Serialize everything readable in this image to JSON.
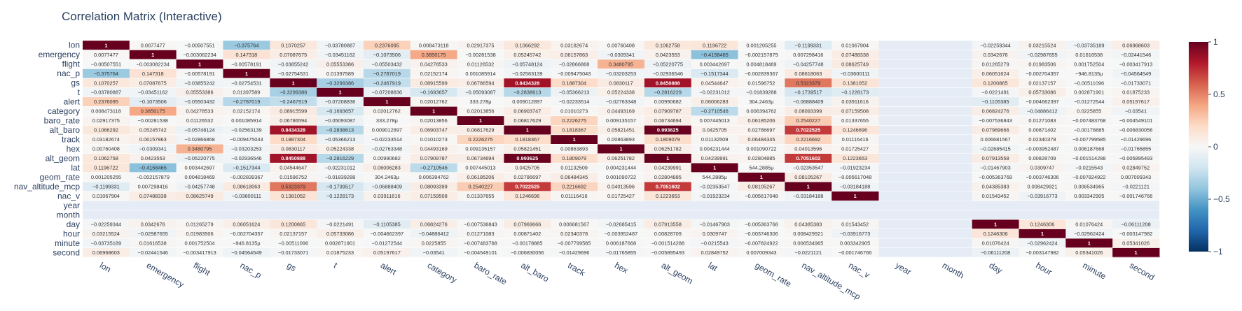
{
  "chart_data": {
    "type": "heatmap",
    "title": "Correlation Matrix (Interactive)",
    "labels": [
      "lon",
      "emergency",
      "flight",
      "nac_p",
      "gs",
      "t",
      "alert",
      "category",
      "baro_rate",
      "alt_baro",
      "track",
      "hex",
      "alt_geom",
      "lat",
      "geom_rate",
      "nav_altitude_mcp",
      "nac_v",
      "year",
      "month",
      "day",
      "hour",
      "minute",
      "second"
    ],
    "zmin": -1,
    "zmax": 1,
    "colorscale": "RdBu",
    "colorbar_ticks": [
      "1",
      "0.5",
      "0",
      "−0.5",
      "−1"
    ],
    "colorbar_tick_values": [
      1,
      0.5,
      0,
      -0.5,
      -1
    ],
    "missing_color": "#e5ecf6",
    "cells": [
      [
        "1",
        "0.0077477",
        "−0.00507551",
        "−0.375764",
        "0.1070257",
        "−0.03780887",
        "0.2376095",
        "0.008473118",
        "0.02917375",
        "0.1066292",
        "0.03182674",
        "0.00760408",
        "0.1062758",
        "0.1196722",
        "0.001205255",
        "−0.1199331",
        "0.01067904",
        "",
        "",
        "−0.02259344",
        "0.03215524",
        "−0.03735189",
        "0.06968603"
      ],
      [
        "0.0077477",
        "1",
        "−0.003082234",
        "0.147318",
        "0.07087675",
        "−0.03451162",
        "−0.1073506",
        "0.3850175",
        "−0.00281538",
        "0.05245742",
        "0.06157863",
        "−0.0309341",
        "0.0423553",
        "−0.4158465",
        "−0.002157879",
        "0.007298416",
        "0.07488338",
        "",
        "",
        "0.0342676",
        "−0.02987655",
        "0.01616538",
        "−0.02441546"
      ],
      [
        "−0.00507551",
        "−0.003082234",
        "1",
        "−0.00578191",
        "−0.03855242",
        "0.05553386",
        "−0.05503432",
        "0.04278533",
        "0.01126532",
        "−0.05748124",
        "−0.02866868",
        "0.3480795",
        "−0.05220775",
        "0.003442697",
        "0.004818469",
        "−0.04257748",
        "0.08625749",
        "",
        "",
        "0.01265279",
        "0.01983506",
        "0.001752504",
        "−0.003417913"
      ],
      [
        "−0.375764",
        "0.147318",
        "−0.00578191",
        "1",
        "−0.02754531",
        "0.01397589",
        "−0.2787019",
        "0.02152174",
        "0.001085914",
        "−0.02563139",
        "−0.009475043",
        "−0.03203253",
        "−0.02936546",
        "−0.1517344",
        "−0.002839367",
        "0.08618063",
        "−0.03600111",
        "",
        "",
        "0.06051624",
        "−0.002704357",
        "−946.8135μ",
        "−0.04564549"
      ],
      [
        "0.1070257",
        "0.07087675",
        "−0.03855242",
        "−0.02754531",
        "1",
        "−0.3299386",
        "−0.2467919",
        "0.08915599",
        "0.06786594",
        "0.8434328",
        "0.1887304",
        "0.0830117",
        "0.8450888",
        "0.04544647",
        "0.01596752",
        "0.5323379",
        "0.1381052",
        "",
        "",
        "0.1200865",
        "0.02137157",
        "−0.00511096",
        "−0.01733071"
      ],
      [
        "−0.03780887",
        "−0.03451162",
        "0.05553386",
        "0.01397589",
        "−0.3299386",
        "1",
        "−0.07208836",
        "−0.1693657",
        "−0.05093087",
        "−0.2838613",
        "−0.05366213",
        "0.05224338",
        "−0.2816229",
        "−0.02231012",
        "−0.01839288",
        "−0.1739517",
        "−0.1228173",
        "",
        "",
        "−0.0221491",
        "0.05733086",
        "0.002871901",
        "0.01875233"
      ],
      [
        "0.2376095",
        "−0.1073506",
        "−0.05503432",
        "−0.2787019",
        "−0.2467919",
        "−0.07208836",
        "1",
        "0.02012762",
        "333.278μ",
        "0.009012897",
        "−0.02233514",
        "−0.02763348",
        "0.00990682",
        "0.06006283",
        "304.2463μ",
        "−0.06888409",
        "0.03911616",
        "",
        "",
        "−0.1105385",
        "−0.004662397",
        "−0.01272544",
        "0.05197617"
      ],
      [
        "0.008473118",
        "0.3850175",
        "0.04278533",
        "0.02152174",
        "0.08915599",
        "−0.1693657",
        "0.02012762",
        "1",
        "0.02013856",
        "0.06903747",
        "0.01010273",
        "0.04493169",
        "0.07909787",
        "−0.2710546",
        "0.006394762",
        "0.08093399",
        "0.07159508",
        "",
        "",
        "0.06824276",
        "−0.04886412",
        "0.0225855",
        "−0.03541"
      ],
      [
        "0.02917375",
        "−0.00281538",
        "0.01126532",
        "0.001085914",
        "0.06786594",
        "−0.05093087",
        "333.278μ",
        "0.02013856",
        "1",
        "0.06817629",
        "0.2226275",
        "0.009135157",
        "0.06734694",
        "0.007445013",
        "0.06185206",
        "0.2540227",
        "0.01337655",
        "",
        "",
        "−0.007536843",
        "0.01271083",
        "−0.007483768",
        "−0.004549101"
      ],
      [
        "0.1066292",
        "0.05245742",
        "−0.05748124",
        "−0.02563139",
        "0.8434328",
        "−0.2838613",
        "0.009012897",
        "0.06903747",
        "0.06817629",
        "1",
        "0.1818367",
        "0.05821451",
        "0.993625",
        "0.0425705",
        "0.02786697",
        "0.7022525",
        "0.1246696",
        "",
        "",
        "0.07969666",
        "0.00871402",
        "−0.00178885",
        "−0.006830056"
      ],
      [
        "0.03182674",
        "0.06157863",
        "−0.02866868",
        "−0.009475043",
        "0.1887304",
        "−0.05366213",
        "−0.02233514",
        "0.01010273",
        "0.2226275",
        "0.1818367",
        "1",
        "0.00863893",
        "0.1809079",
        "0.01132509",
        "0.06484345",
        "0.2216692",
        "0.01116416",
        "",
        "",
        "0.006681567",
        "0.02340378",
        "−0.007799585",
        "−0.01429696"
      ],
      [
        "0.00760408",
        "−0.0309341",
        "0.3480795",
        "−0.03203253",
        "0.0830117",
        "0.05224338",
        "−0.02763348",
        "0.04493169",
        "0.009135157",
        "0.05821451",
        "0.00863893",
        "1",
        "0.06251782",
        "0.004231444",
        "0.001090722",
        "0.04013596",
        "0.01725427",
        "",
        "",
        "−0.02685415",
        "−0.003952487",
        "0.006187668",
        "−0.01765855"
      ],
      [
        "0.1062758",
        "0.0423553",
        "−0.05220775",
        "−0.02936546",
        "0.8450888",
        "−0.2816229",
        "0.00990682",
        "0.07909787",
        "0.06734694",
        "0.993625",
        "0.1809079",
        "0.06251782",
        "1",
        "0.04239991",
        "0.02804885",
        "0.7051602",
        "0.1223653",
        "",
        "",
        "0.07913558",
        "0.00828709",
        "−0.001514288",
        "−0.005895493"
      ],
      [
        "0.1196722",
        "−0.4158465",
        "0.003442697",
        "−0.1517344",
        "0.04544647",
        "−0.02231012",
        "0.06006283",
        "−0.2710546",
        "0.007445013",
        "0.0425705",
        "0.01132509",
        "0.004231444",
        "0.04239991",
        "1",
        "544.2885μ",
        "−0.02353547",
        "−0.01923234",
        "",
        "",
        "−0.01467903",
        "0.0309747",
        "−0.0215543",
        "0.02849752"
      ],
      [
        "0.001205255",
        "−0.002157879",
        "0.004818469",
        "−0.002839367",
        "0.01596752",
        "−0.01839288",
        "304.2463μ",
        "0.006394762",
        "0.06185206",
        "0.02786697",
        "0.06484345",
        "0.001090722",
        "0.02804885",
        "544.2885μ",
        "1",
        "0.08105267",
        "−0.005617048",
        "",
        "",
        "−0.005363768",
        "−0.003746306",
        "−0.007824922",
        "0.007009343"
      ],
      [
        "−0.1199331",
        "0.007298416",
        "−0.04257748",
        "0.08618063",
        "0.5323379",
        "−0.1739517",
        "−0.06888409",
        "0.08093399",
        "0.2540227",
        "0.7022525",
        "0.2216692",
        "0.04013596",
        "0.7051602",
        "−0.02353547",
        "0.08105267",
        "1",
        "−0.03184188",
        "",
        "",
        "0.04385383",
        "0.008429921",
        "0.006534965",
        "−0.0221121"
      ],
      [
        "0.01067904",
        "0.07488338",
        "0.08625749",
        "−0.03600111",
        "0.1381052",
        "−0.1228173",
        "0.03911616",
        "0.07159508",
        "0.01337655",
        "0.1246696",
        "0.01116416",
        "0.01725427",
        "0.1223653",
        "−0.01923234",
        "−0.005617048",
        "−0.03184188",
        "1",
        "",
        "",
        "0.01543452",
        "−0.03916773",
        "0.003342905",
        "−0.001746766"
      ],
      [
        "",
        "",
        "",
        "",
        "",
        "",
        "",
        "",
        "",
        "",
        "",
        "",
        "",
        "",
        "",
        "",
        "",
        "",
        "",
        "",
        "",
        "",
        ""
      ],
      [
        "",
        "",
        "",
        "",
        "",
        "",
        "",
        "",
        "",
        "",
        "",
        "",
        "",
        "",
        "",
        "",
        "",
        "",
        "",
        "",
        "",
        "",
        ""
      ],
      [
        "−0.02259344",
        "0.0342676",
        "0.01265279",
        "0.06051624",
        "0.1200865",
        "−0.0221491",
        "−0.1105385",
        "0.06824276",
        "−0.007536843",
        "0.07969666",
        "0.006681567",
        "−0.02685415",
        "0.07913558",
        "−0.01467903",
        "−0.005363768",
        "0.04385383",
        "0.01543452",
        "",
        "",
        "1",
        "0.1246306",
        "0.01076424",
        "−0.06111208"
      ],
      [
        "0.03215524",
        "−0.02987655",
        "0.01983506",
        "−0.002704357",
        "0.02137157",
        "0.05733086",
        "−0.004662397",
        "−0.04886412",
        "0.01271083",
        "0.00871402",
        "0.02340378",
        "−0.003952487",
        "0.00828709",
        "0.0309747",
        "−0.003746306",
        "0.008429921",
        "−0.03916773",
        "",
        "",
        "0.1246306",
        "1",
        "−0.02962424",
        "−0.003147982"
      ],
      [
        "−0.03735189",
        "0.01616538",
        "0.001752504",
        "−946.8135μ",
        "−0.00511096",
        "0.002871901",
        "−0.01272544",
        "0.0225855",
        "−0.007483768",
        "−0.00178885",
        "−0.007799585",
        "0.006187668",
        "−0.001514288",
        "−0.0215543",
        "−0.007824922",
        "0.006534965",
        "0.003342905",
        "",
        "",
        "0.01076424",
        "−0.02962424",
        "1",
        "0.05341026"
      ],
      [
        "0.06968603",
        "−0.02441546",
        "−0.003417913",
        "−0.04564549",
        "−0.01733071",
        "0.01875233",
        "0.05197617",
        "−0.03541",
        "−0.004549101",
        "−0.006830056",
        "−0.01429696",
        "−0.01765855",
        "−0.005895493",
        "0.02849752",
        "0.007009343",
        "−0.0221121",
        "−0.001746766",
        "",
        "",
        "−0.06111208",
        "−0.003147982",
        "0.05341026",
        "1"
      ]
    ]
  }
}
